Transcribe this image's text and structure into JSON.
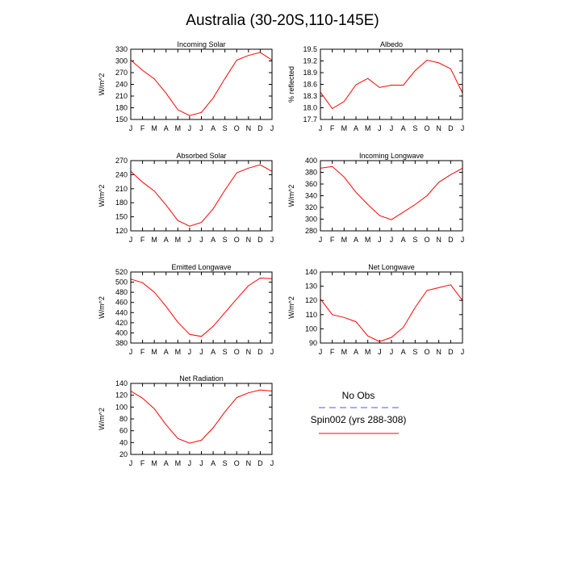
{
  "page_title": "Australia (30-20S,110-145E)",
  "chart_data": [
    {
      "type": "line",
      "title": "Incoming Solar",
      "ylabel": "W/m^2",
      "categories": [
        "J",
        "F",
        "M",
        "A",
        "M",
        "J",
        "J",
        "A",
        "S",
        "O",
        "N",
        "D",
        "J"
      ],
      "yticks": [
        "150",
        "180",
        "210",
        "240",
        "270",
        "300",
        "330"
      ],
      "ylim": [
        150,
        330
      ],
      "series": [
        {
          "name": "Spin002 (yrs 288-308)",
          "color": "#ff0000",
          "values": [
            302,
            276,
            254,
            217,
            175,
            160,
            168,
            205,
            255,
            302,
            314,
            322,
            302
          ]
        }
      ]
    },
    {
      "type": "line",
      "title": "Albedo",
      "ylabel": "% reflected",
      "categories": [
        "J",
        "F",
        "M",
        "A",
        "M",
        "J",
        "J",
        "A",
        "S",
        "O",
        "N",
        "D",
        "J"
      ],
      "yticks": [
        "17.7",
        "18.0",
        "18.3",
        "18.6",
        "18.9",
        "19.2",
        "19.5"
      ],
      "ylim": [
        17.7,
        19.5
      ],
      "series": [
        {
          "name": "Spin002 (yrs 288-308)",
          "color": "#ff0000",
          "values": [
            18.4,
            17.98,
            18.16,
            18.59,
            18.75,
            18.52,
            18.58,
            18.58,
            18.95,
            19.22,
            19.15,
            19.0,
            18.38
          ]
        }
      ]
    },
    {
      "type": "line",
      "title": "Absorbed Solar",
      "ylabel": "W/m^2",
      "categories": [
        "J",
        "F",
        "M",
        "A",
        "M",
        "J",
        "J",
        "A",
        "S",
        "O",
        "N",
        "D",
        "J"
      ],
      "yticks": [
        "120",
        "150",
        "180",
        "210",
        "240",
        "270"
      ],
      "ylim": [
        120,
        270
      ],
      "series": [
        {
          "name": "Spin002 (yrs 288-308)",
          "color": "#ff0000",
          "values": [
            247,
            224,
            205,
            175,
            142,
            130,
            138,
            167,
            207,
            244,
            254,
            261,
            247
          ]
        }
      ]
    },
    {
      "type": "line",
      "title": "Incoming Longwave",
      "ylabel": "W/m^2",
      "categories": [
        "J",
        "F",
        "M",
        "A",
        "M",
        "J",
        "J",
        "A",
        "S",
        "O",
        "N",
        "D",
        "J"
      ],
      "yticks": [
        "280",
        "300",
        "320",
        "340",
        "360",
        "380",
        "400"
      ],
      "ylim": [
        280,
        400
      ],
      "series": [
        {
          "name": "Spin002 (yrs 288-308)",
          "color": "#ff0000",
          "values": [
            387,
            390,
            372,
            346,
            325,
            306,
            299,
            312,
            325,
            340,
            363,
            376,
            387
          ]
        }
      ]
    },
    {
      "type": "line",
      "title": "Emitted Longwave",
      "ylabel": "W/m^2",
      "categories": [
        "J",
        "F",
        "M",
        "A",
        "M",
        "J",
        "J",
        "A",
        "S",
        "O",
        "N",
        "D",
        "J"
      ],
      "yticks": [
        "380",
        "400",
        "420",
        "440",
        "460",
        "480",
        "500",
        "520"
      ],
      "ylim": [
        380,
        520
      ],
      "series": [
        {
          "name": "Spin002 (yrs 288-308)",
          "color": "#ff0000",
          "values": [
            506,
            499,
            480,
            452,
            421,
            397,
            393,
            413,
            440,
            467,
            493,
            508,
            507
          ]
        }
      ]
    },
    {
      "type": "line",
      "title": "Net Longwave",
      "ylabel": "W/m^2",
      "categories": [
        "J",
        "F",
        "M",
        "A",
        "M",
        "J",
        "J",
        "A",
        "S",
        "O",
        "N",
        "D",
        "J"
      ],
      "yticks": [
        "90",
        "100",
        "110",
        "120",
        "130",
        "140"
      ],
      "ylim": [
        90,
        140
      ],
      "series": [
        {
          "name": "Spin002 (yrs 288-308)",
          "color": "#ff0000",
          "values": [
            121,
            110,
            108,
            105,
            95,
            91,
            94,
            101,
            115,
            127,
            129,
            131,
            120
          ]
        }
      ]
    },
    {
      "type": "line",
      "title": "Net Radiation",
      "ylabel": "W/m^2",
      "categories": [
        "J",
        "F",
        "M",
        "A",
        "M",
        "J",
        "J",
        "A",
        "S",
        "O",
        "N",
        "D",
        "J"
      ],
      "yticks": [
        "20",
        "40",
        "60",
        "80",
        "100",
        "120",
        "140"
      ],
      "ylim": [
        20,
        140
      ],
      "series": [
        {
          "name": "Spin002 (yrs 288-308)",
          "color": "#ff0000",
          "values": [
            127,
            115,
            97,
            70,
            47,
            39,
            44,
            65,
            92,
            116,
            124,
            129,
            127
          ]
        }
      ]
    }
  ],
  "legend": [
    {
      "label": "No Obs",
      "color": "#5050ff",
      "style": "dashed"
    },
    {
      "label": "Spin002 (yrs 288-308)",
      "color": "#ff0000",
      "style": "solid"
    }
  ]
}
